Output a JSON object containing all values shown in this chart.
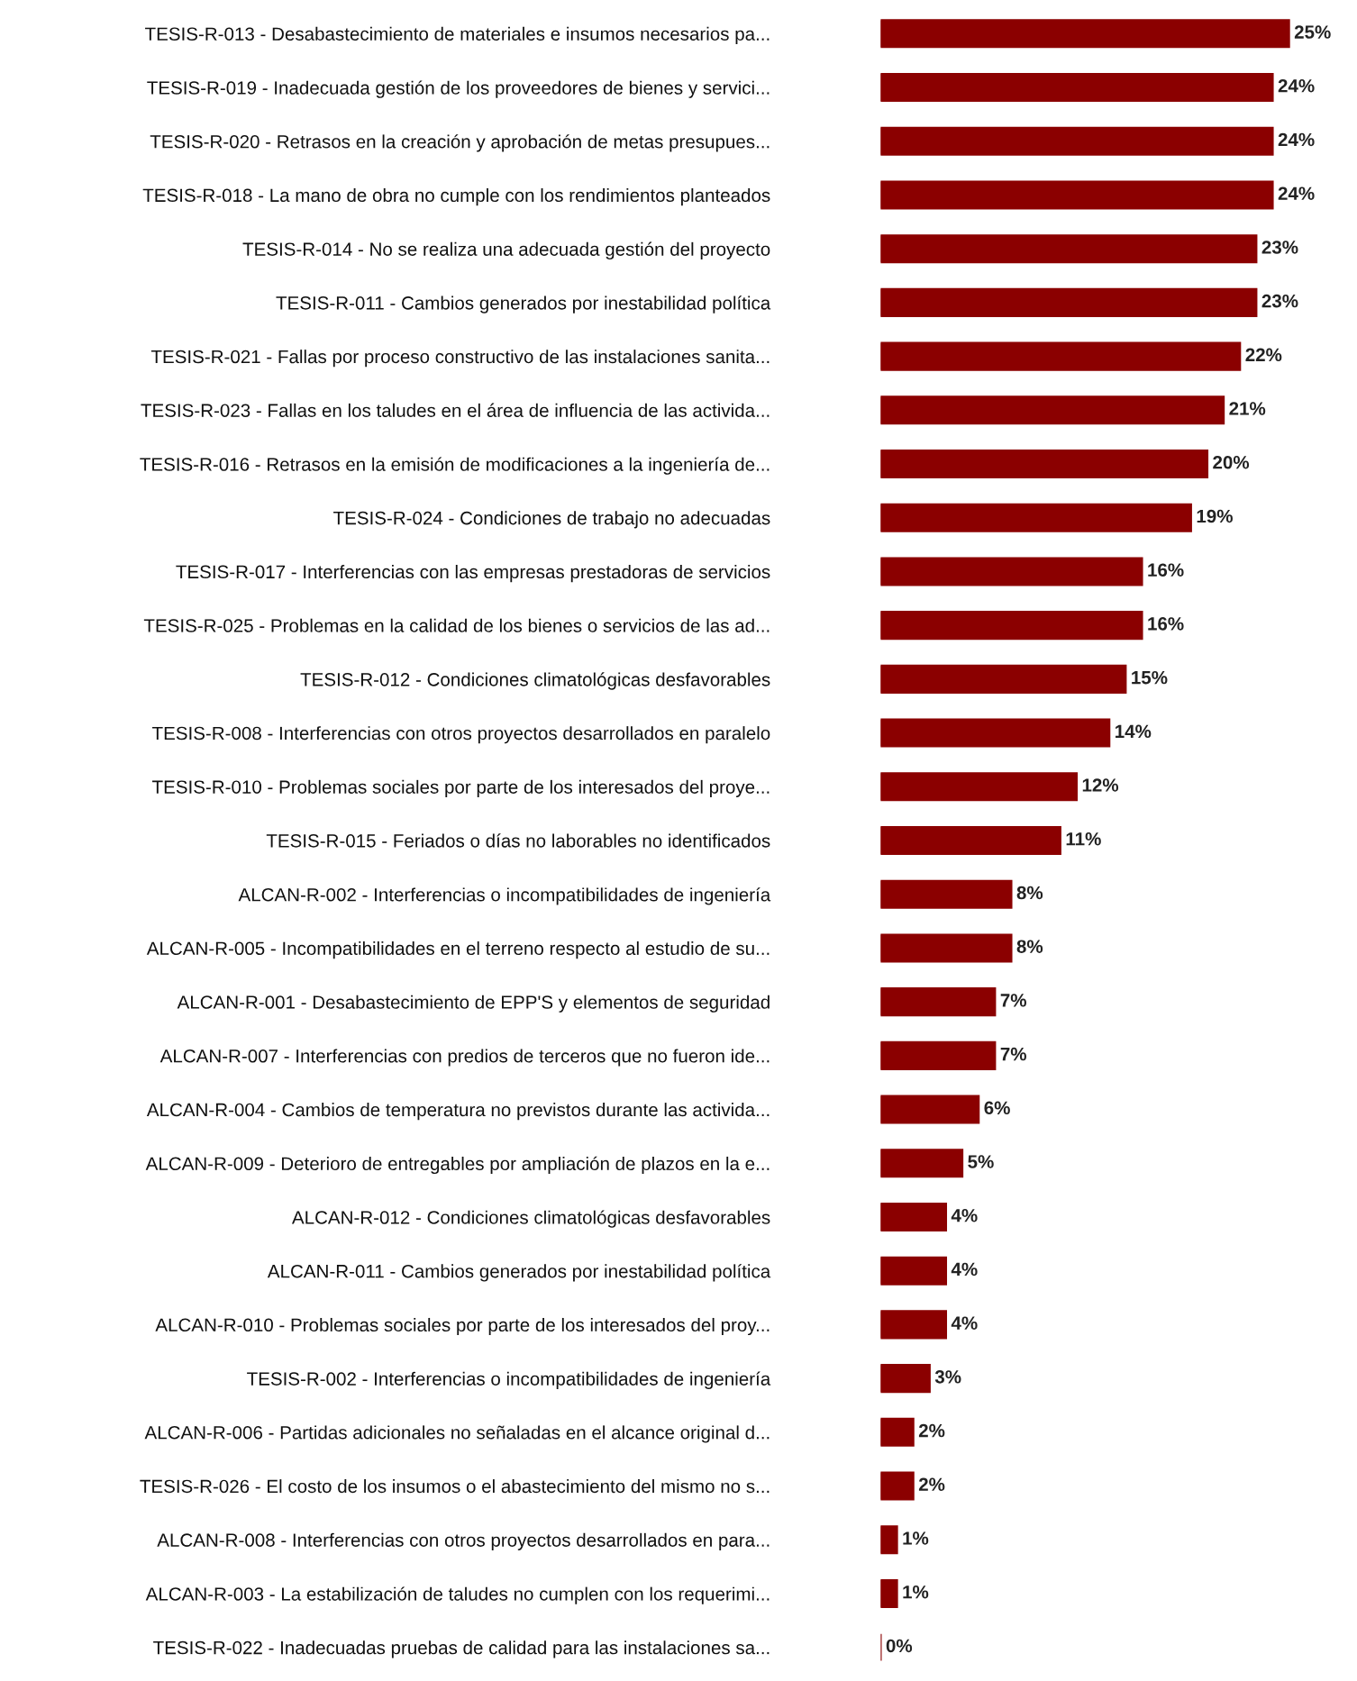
{
  "chart_data": {
    "type": "bar",
    "orientation": "horizontal",
    "data_labels": true,
    "grid": false,
    "legend": false,
    "categories": [
      "TESIS-R-013 - Desabastecimiento de materiales e insumos necesarios pa...",
      "TESIS-R-019 - Inadecuada gestión de los proveedores de bienes y servici...",
      "TESIS-R-020 - Retrasos en la creación y aprobación de metas presupues...",
      "TESIS-R-018 - La mano de obra no cumple con los rendimientos planteados",
      "TESIS-R-014 - No se realiza una adecuada gestión del proyecto",
      "TESIS-R-011 - Cambios generados por inestabilidad política",
      "TESIS-R-021 - Fallas por proceso constructivo de las instalaciones sanita...",
      "TESIS-R-023 - Fallas en los taludes en el área de influencia de las activida...",
      "TESIS-R-016 - Retrasos en la emisión de modificaciones a la ingeniería de...",
      "TESIS-R-024 - Condiciones de trabajo no adecuadas",
      "TESIS-R-017 - Interferencias con las empresas prestadoras de servicios",
      "TESIS-R-025 - Problemas en la calidad de los bienes o servicios de las ad...",
      "TESIS-R-012 - Condiciones climatológicas desfavorables",
      "TESIS-R-008 - Interferencias con otros proyectos desarrollados en paralelo",
      "TESIS-R-010 - Problemas sociales por parte de los interesados del proye...",
      "TESIS-R-015 - Feriados o días no laborables no identificados",
      "ALCAN-R-002 - Interferencias o incompatibilidades de ingeniería",
      "ALCAN-R-005 - Incompatibilidades en el terreno respecto al estudio de su...",
      "ALCAN-R-001 - Desabastecimiento de EPP'S y elementos de seguridad",
      "ALCAN-R-007 - Interferencias con predios de terceros que no fueron ide...",
      "ALCAN-R-004 - Cambios de temperatura no previstos durante las activida...",
      "ALCAN-R-009 - Deterioro de entregables por ampliación de plazos en la e...",
      "ALCAN-R-012 - Condiciones climatológicas desfavorables",
      "ALCAN-R-011 - Cambios generados por inestabilidad política",
      "ALCAN-R-010 - Problemas sociales por parte de los interesados del proy...",
      "TESIS-R-002 - Interferencias o incompatibilidades de ingeniería",
      "ALCAN-R-006 - Partidas adicionales no señaladas en el alcance original d...",
      "TESIS-R-026 - El costo de los insumos o el abastecimiento del mismo no s...",
      "ALCAN-R-008 - Interferencias con otros proyectos desarrollados en para...",
      "ALCAN-R-003 - La estabilización de taludes no cumplen con los requerimi...",
      "TESIS-R-022 - Inadecuadas pruebas de calidad para las instalaciones sa..."
    ],
    "values": [
      25,
      24,
      24,
      24,
      23,
      23,
      22,
      21,
      20,
      19,
      16,
      16,
      15,
      14,
      12,
      11,
      8,
      8,
      7,
      7,
      6,
      5,
      4,
      4,
      4,
      3,
      2,
      2,
      1,
      1,
      0
    ],
    "value_labels": [
      "25%",
      "24%",
      "24%",
      "24%",
      "23%",
      "23%",
      "22%",
      "21%",
      "20%",
      "19%",
      "16%",
      "16%",
      "15%",
      "14%",
      "12%",
      "11%",
      "8%",
      "8%",
      "7%",
      "7%",
      "6%",
      "5%",
      "4%",
      "4%",
      "4%",
      "3%",
      "2%",
      "2%",
      "1%",
      "1%",
      "0%"
    ],
    "color": "#8b0000"
  }
}
